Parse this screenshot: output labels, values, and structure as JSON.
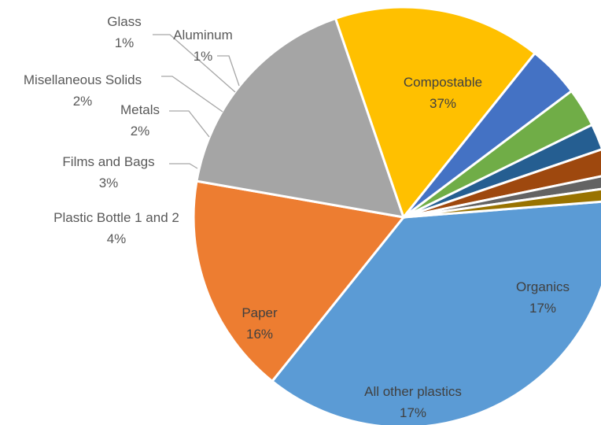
{
  "chart_data": {
    "type": "pie",
    "title": "",
    "slices": [
      {
        "label": "Compostable",
        "pct_label": "37%",
        "value": 37,
        "color": "#5b9bd5"
      },
      {
        "label": "Organics",
        "pct_label": "17%",
        "value": 17,
        "color": "#ed7d31"
      },
      {
        "label": "All other plastics",
        "pct_label": "17%",
        "value": 17,
        "color": "#a5a5a5"
      },
      {
        "label": "Paper",
        "pct_label": "16%",
        "value": 16,
        "color": "#ffc000"
      },
      {
        "label": "Plastic Bottle 1 and 2",
        "pct_label": "4%",
        "value": 4,
        "color": "#4472c4"
      },
      {
        "label": "Films and Bags",
        "pct_label": "3%",
        "value": 3,
        "color": "#70ad47"
      },
      {
        "label": "Metals",
        "pct_label": "2%",
        "value": 2,
        "color": "#255e91"
      },
      {
        "label": "Misellaneous Solids",
        "pct_label": "2%",
        "value": 2,
        "color": "#9e480e"
      },
      {
        "label": "Glass",
        "pct_label": "1%",
        "value": 1,
        "color": "#636363"
      },
      {
        "label": "Aluminum",
        "pct_label": "1%",
        "value": 1,
        "color": "#997300"
      }
    ],
    "label_colors": {
      "inside": "#404040",
      "outside": "#595959"
    },
    "legend": "none"
  }
}
